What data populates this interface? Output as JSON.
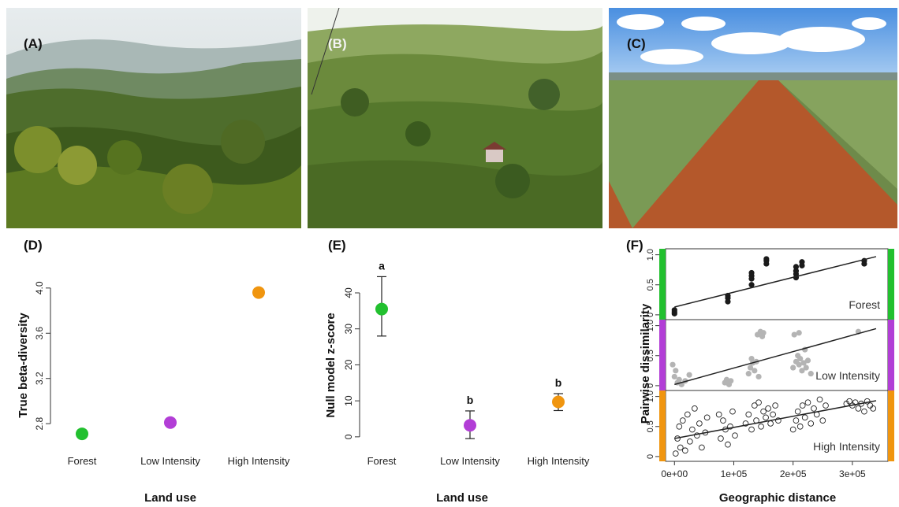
{
  "panels": {
    "A": {
      "label": "(A)"
    },
    "B": {
      "label": "(B)"
    },
    "C": {
      "label": "(C)"
    },
    "D": {
      "label": "(D)"
    },
    "E": {
      "label": "(E)"
    },
    "F": {
      "label": "(F)"
    }
  },
  "colors": {
    "forest": "#22c02f",
    "low_intensity": "#b23ed6",
    "high_intensity": "#f0950f"
  },
  "chart_data": [
    {
      "id": "D",
      "type": "scatter",
      "xlabel": "Land use",
      "ylabel": "True beta-diversity",
      "categories": [
        "Forest",
        "Low Intensity",
        "High Intensity"
      ],
      "values": [
        2.71,
        2.81,
        3.96
      ],
      "ylim": [
        2.62,
        4.18
      ],
      "yticks": [
        2.8,
        3.2,
        3.6,
        4.0
      ],
      "ytick_labels": [
        "2.8",
        "3.2",
        "3.6",
        "4.0"
      ],
      "grid": false
    },
    {
      "id": "E",
      "type": "scatter",
      "xlabel": "Land use",
      "ylabel": "Null model z-score",
      "categories": [
        "Forest",
        "Low Intensity",
        "High Intensity"
      ],
      "values": [
        35.5,
        3.2,
        9.7
      ],
      "error_low": [
        28.0,
        -0.5,
        7.3
      ],
      "error_high": [
        44.5,
        7.2,
        12.0
      ],
      "annotations": [
        "a",
        "b",
        "b"
      ],
      "ylim": [
        -2,
        47
      ],
      "yticks": [
        0,
        10,
        20,
        30,
        40
      ],
      "ytick_labels": [
        "0",
        "10",
        "20",
        "30",
        "40"
      ],
      "grid": false
    },
    {
      "id": "F",
      "type": "scatter",
      "xlabel": "Geographic distance",
      "ylabel": "Pairwise dissimilarity",
      "xlim": [
        -15000,
        360000
      ],
      "xticks": [
        0,
        100000,
        200000,
        300000
      ],
      "xtick_labels": [
        "0e+00",
        "1e+05",
        "2e+05",
        "3e+05"
      ],
      "yticks": [
        0,
        0.5,
        1.0
      ],
      "ytick_labels": [
        "0",
        "0.5",
        "1.0"
      ],
      "ylim": [
        -0.08,
        1.1
      ],
      "grid": false,
      "facets": [
        {
          "name": "Forest",
          "point_style": "filled-black",
          "fit": [
            [
              0,
              0.13
            ],
            [
              340000,
              0.97
            ]
          ],
          "points": [
            [
              0,
              0.02
            ],
            [
              0,
              0.05
            ],
            [
              0,
              0.08
            ],
            [
              90000,
              0.22
            ],
            [
              90000,
              0.28
            ],
            [
              90000,
              0.32
            ],
            [
              130000,
              0.5
            ],
            [
              130000,
              0.6
            ],
            [
              130000,
              0.65
            ],
            [
              130000,
              0.7
            ],
            [
              155000,
              0.85
            ],
            [
              155000,
              0.9
            ],
            [
              155000,
              0.93
            ],
            [
              205000,
              0.62
            ],
            [
              205000,
              0.68
            ],
            [
              205000,
              0.73
            ],
            [
              205000,
              0.8
            ],
            [
              215000,
              0.82
            ],
            [
              215000,
              0.88
            ],
            [
              320000,
              0.85
            ],
            [
              320000,
              0.9
            ]
          ]
        },
        {
          "name": "Low Intensity",
          "point_style": "filled-grey",
          "fit": [
            [
              0,
              0.02
            ],
            [
              340000,
              0.95
            ]
          ],
          "points": [
            [
              -3000,
              0.35
            ],
            [
              0,
              0.15
            ],
            [
              2000,
              0.25
            ],
            [
              5000,
              0.05
            ],
            [
              8000,
              0.1
            ],
            [
              12000,
              0.02
            ],
            [
              18000,
              0.08
            ],
            [
              25000,
              0.18
            ],
            [
              85000,
              0.05
            ],
            [
              88000,
              0.1
            ],
            [
              92000,
              0.02
            ],
            [
              95000,
              0.08
            ],
            [
              125000,
              0.2
            ],
            [
              128000,
              0.3
            ],
            [
              130000,
              0.45
            ],
            [
              132000,
              0.38
            ],
            [
              135000,
              0.25
            ],
            [
              138000,
              0.4
            ],
            [
              140000,
              0.85
            ],
            [
              145000,
              0.9
            ],
            [
              148000,
              0.82
            ],
            [
              150000,
              0.88
            ],
            [
              142000,
              0.15
            ],
            [
              200000,
              0.3
            ],
            [
              205000,
              0.4
            ],
            [
              208000,
              0.5
            ],
            [
              210000,
              0.35
            ],
            [
              212000,
              0.45
            ],
            [
              215000,
              0.25
            ],
            [
              218000,
              0.38
            ],
            [
              202000,
              0.85
            ],
            [
              210000,
              0.88
            ],
            [
              220000,
              0.6
            ],
            [
              222000,
              0.3
            ],
            [
              225000,
              0.42
            ],
            [
              230000,
              0.2
            ],
            [
              310000,
              0.9
            ]
          ]
        },
        {
          "name": "High Intensity",
          "point_style": "open-circles",
          "fit": [
            [
              0,
              0.3
            ],
            [
              340000,
              0.93
            ]
          ],
          "points": [
            [
              2000,
              0.05
            ],
            [
              5000,
              0.3
            ],
            [
              8000,
              0.5
            ],
            [
              10000,
              0.15
            ],
            [
              14000,
              0.6
            ],
            [
              18000,
              0.1
            ],
            [
              22000,
              0.7
            ],
            [
              26000,
              0.25
            ],
            [
              30000,
              0.45
            ],
            [
              34000,
              0.8
            ],
            [
              38000,
              0.35
            ],
            [
              42000,
              0.55
            ],
            [
              46000,
              0.15
            ],
            [
              52000,
              0.4
            ],
            [
              55000,
              0.65
            ],
            [
              75000,
              0.7
            ],
            [
              78000,
              0.3
            ],
            [
              82000,
              0.6
            ],
            [
              86000,
              0.45
            ],
            [
              90000,
              0.2
            ],
            [
              94000,
              0.5
            ],
            [
              98000,
              0.75
            ],
            [
              102000,
              0.35
            ],
            [
              120000,
              0.55
            ],
            [
              125000,
              0.7
            ],
            [
              130000,
              0.45
            ],
            [
              135000,
              0.85
            ],
            [
              138000,
              0.6
            ],
            [
              142000,
              0.9
            ],
            [
              146000,
              0.5
            ],
            [
              150000,
              0.75
            ],
            [
              154000,
              0.65
            ],
            [
              158000,
              0.8
            ],
            [
              162000,
              0.55
            ],
            [
              166000,
              0.7
            ],
            [
              170000,
              0.85
            ],
            [
              175000,
              0.6
            ],
            [
              200000,
              0.45
            ],
            [
              205000,
              0.6
            ],
            [
              208000,
              0.75
            ],
            [
              212000,
              0.5
            ],
            [
              216000,
              0.85
            ],
            [
              220000,
              0.65
            ],
            [
              225000,
              0.9
            ],
            [
              230000,
              0.55
            ],
            [
              235000,
              0.8
            ],
            [
              240000,
              0.7
            ],
            [
              245000,
              0.95
            ],
            [
              250000,
              0.6
            ],
            [
              255000,
              0.85
            ],
            [
              290000,
              0.88
            ],
            [
              295000,
              0.92
            ],
            [
              300000,
              0.85
            ],
            [
              305000,
              0.9
            ],
            [
              310000,
              0.8
            ],
            [
              315000,
              0.88
            ],
            [
              320000,
              0.75
            ],
            [
              325000,
              0.92
            ],
            [
              330000,
              0.85
            ],
            [
              335000,
              0.8
            ]
          ]
        }
      ],
      "facet_strip_colors": [
        "#22c02f",
        "#b23ed6",
        "#f0950f"
      ]
    }
  ]
}
